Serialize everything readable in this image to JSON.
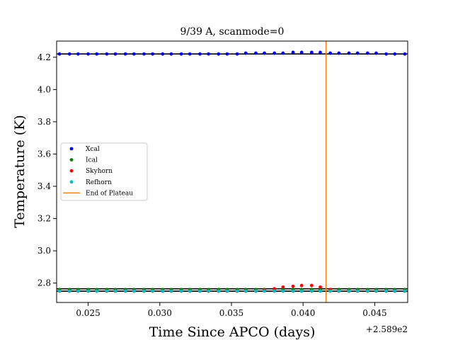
{
  "chart_data": {
    "type": "scatter",
    "title": "9/39 A, scanmode=0",
    "xlabel": "Time Since APCO (days)",
    "ylabel": "Temperature (K)",
    "x_offset_label": "+2.589e2",
    "xlim": [
      0.0228,
      0.0473
    ],
    "ylim": [
      2.68,
      4.3
    ],
    "xticks": [
      0.025,
      0.03,
      0.035,
      0.04,
      0.045
    ],
    "xtick_labels": [
      "0.025",
      "0.030",
      "0.035",
      "0.040",
      "0.045"
    ],
    "yticks": [
      2.8,
      3.0,
      3.2,
      3.4,
      3.6,
      3.8,
      4.0,
      4.2
    ],
    "ytick_labels": [
      "2.8",
      "3.0",
      "3.2",
      "3.4",
      "3.6",
      "3.8",
      "4.0",
      "4.2"
    ],
    "x": [
      0.023,
      0.0237,
      0.0243,
      0.025,
      0.0256,
      0.0263,
      0.0269,
      0.0276,
      0.0282,
      0.0289,
      0.0295,
      0.0302,
      0.0308,
      0.0315,
      0.0321,
      0.0328,
      0.0334,
      0.0341,
      0.0347,
      0.0354,
      0.036,
      0.0367,
      0.0373,
      0.038,
      0.0386,
      0.0393,
      0.0399,
      0.0406,
      0.0412,
      0.0419,
      0.0425,
      0.0432,
      0.0438,
      0.0445,
      0.0451,
      0.0458,
      0.0464,
      0.0471
    ],
    "series": [
      {
        "name": "Xcal",
        "color": "#0000ff",
        "values": [
          4.22,
          4.22,
          4.22,
          4.22,
          4.22,
          4.22,
          4.22,
          4.22,
          4.22,
          4.22,
          4.22,
          4.22,
          4.22,
          4.22,
          4.22,
          4.22,
          4.22,
          4.22,
          4.22,
          4.22,
          4.225,
          4.225,
          4.225,
          4.225,
          4.225,
          4.23,
          4.23,
          4.23,
          4.23,
          4.225,
          4.225,
          4.225,
          4.225,
          4.225,
          4.225,
          4.22,
          4.22,
          4.22
        ]
      },
      {
        "name": "Ical",
        "color": "#008000",
        "values": [
          2.76,
          2.76,
          2.76,
          2.76,
          2.76,
          2.76,
          2.76,
          2.76,
          2.76,
          2.76,
          2.76,
          2.76,
          2.76,
          2.76,
          2.76,
          2.76,
          2.76,
          2.76,
          2.76,
          2.76,
          2.76,
          2.76,
          2.76,
          2.76,
          2.76,
          2.76,
          2.76,
          2.76,
          2.76,
          2.76,
          2.76,
          2.76,
          2.76,
          2.76,
          2.76,
          2.76,
          2.76,
          2.76
        ]
      },
      {
        "name": "Skyhorn",
        "color": "#ff0000",
        "values": [
          2.75,
          2.75,
          2.75,
          2.75,
          2.75,
          2.75,
          2.75,
          2.75,
          2.75,
          2.75,
          2.75,
          2.75,
          2.75,
          2.75,
          2.75,
          2.75,
          2.75,
          2.75,
          2.75,
          2.75,
          2.75,
          2.75,
          2.755,
          2.765,
          2.775,
          2.78,
          2.785,
          2.785,
          2.775,
          2.76,
          2.75,
          2.75,
          2.75,
          2.75,
          2.75,
          2.75,
          2.75,
          2.75
        ]
      },
      {
        "name": "Refhorn",
        "color": "#00bfbf",
        "values": [
          2.75,
          2.75,
          2.75,
          2.75,
          2.75,
          2.75,
          2.75,
          2.75,
          2.75,
          2.75,
          2.75,
          2.75,
          2.75,
          2.75,
          2.75,
          2.75,
          2.75,
          2.75,
          2.75,
          2.75,
          2.75,
          2.75,
          2.75,
          2.75,
          2.75,
          2.75,
          2.75,
          2.75,
          2.75,
          2.75,
          2.75,
          2.75,
          2.75,
          2.75,
          2.75,
          2.75,
          2.75,
          2.75
        ]
      }
    ],
    "reference_lines_y": [
      4.22,
      2.765,
      2.75
    ],
    "reference_line_color": "#000000",
    "end_of_plateau": {
      "name": "End of Plateau",
      "x": 0.0416,
      "color": "#ff7f0e"
    },
    "legend_location": "center-left",
    "grid": false
  }
}
